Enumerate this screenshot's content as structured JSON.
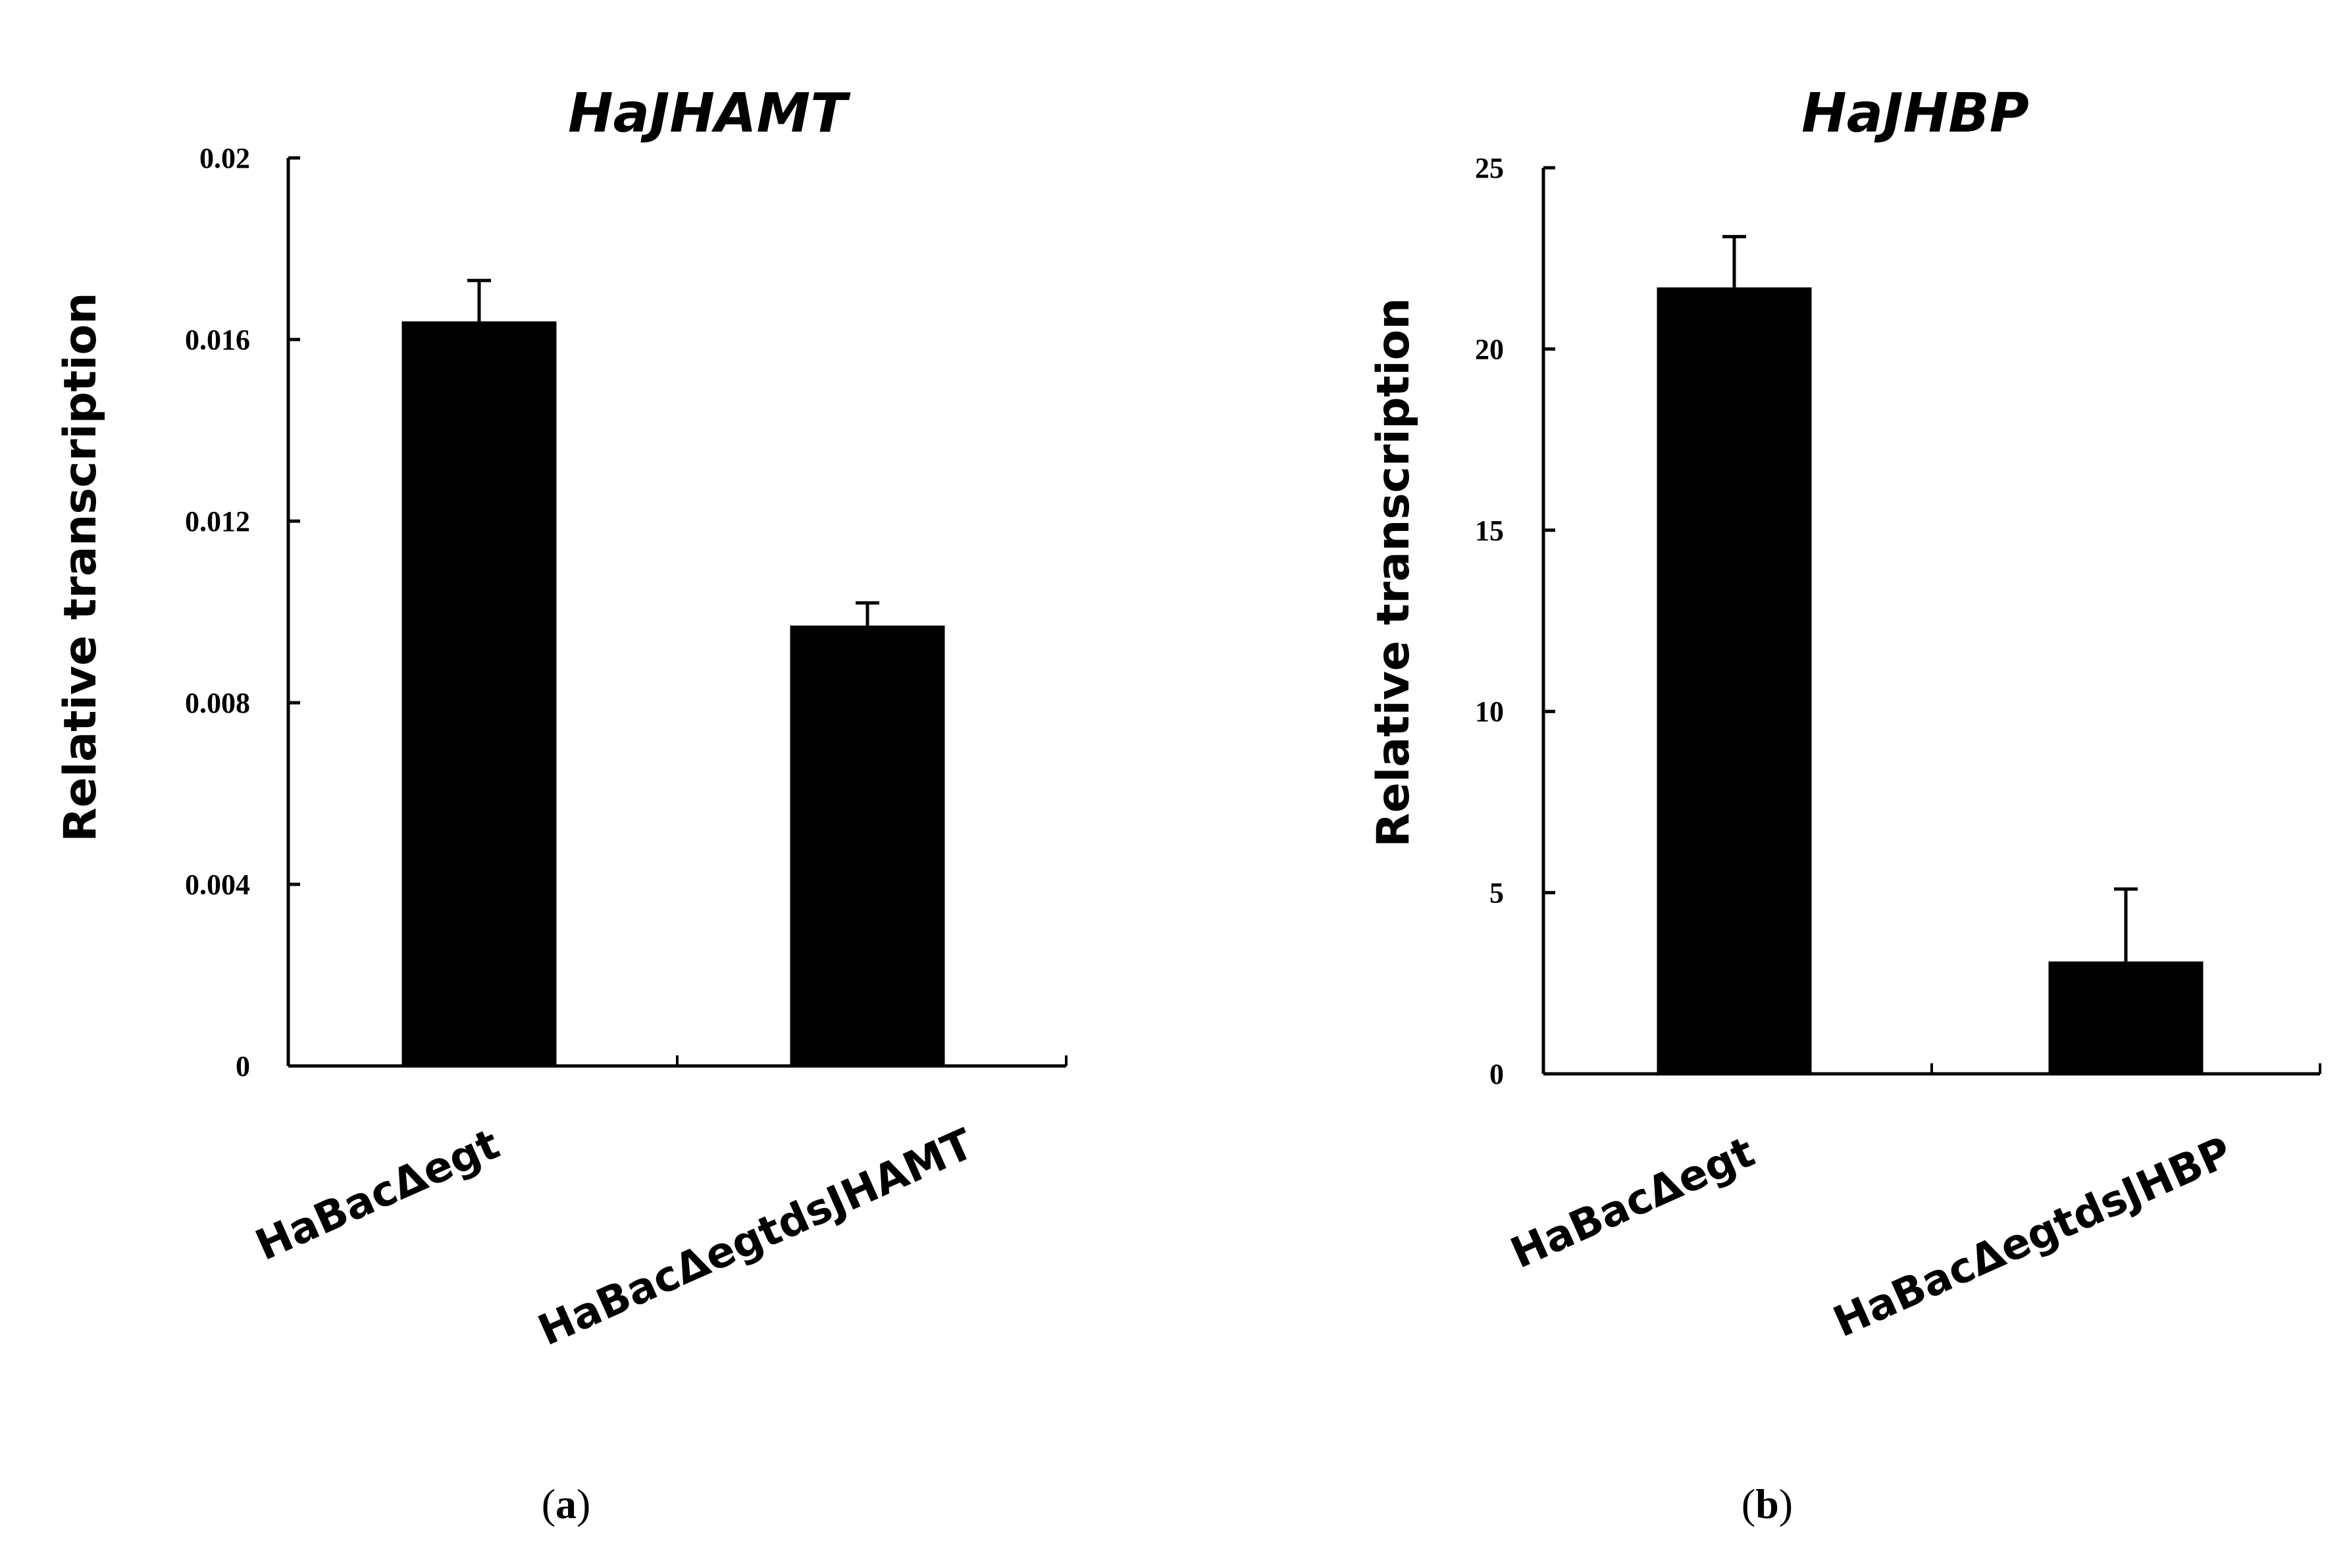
{
  "chart_data": [
    {
      "type": "bar",
      "title": "HaJHAMT",
      "ylabel": "Relative transcription",
      "xlabel": "",
      "categories": [
        "HaBacΔegt",
        "HaBacΔegtdsJHAMT"
      ],
      "values": [
        0.0164,
        0.0097
      ],
      "errors": [
        0.0009,
        0.0005
      ],
      "ylim": [
        0,
        0.02
      ],
      "yticks": [
        "0",
        "0.004",
        "0.008",
        "0.012",
        "0.016",
        "0.02"
      ],
      "ytick_values": [
        0,
        0.004,
        0.008,
        0.012,
        0.016,
        0.02
      ],
      "bar_color": "#000000",
      "grid": false,
      "panel_label": {
        "open": "(",
        "letter": "a",
        "close": ")"
      }
    },
    {
      "type": "bar",
      "title": "HaJHBP",
      "ylabel": "Relative transcription",
      "xlabel": "",
      "categories": [
        "HaBacΔegt",
        "HaBacΔegtdsJHBP"
      ],
      "values": [
        21.7,
        3.1
      ],
      "errors": [
        1.4,
        2.0
      ],
      "ylim": [
        0,
        25
      ],
      "yticks": [
        "0",
        "5",
        "10",
        "15",
        "20",
        "25"
      ],
      "ytick_values": [
        0,
        5,
        10,
        15,
        20,
        25
      ],
      "bar_color": "#000000",
      "grid": false,
      "panel_label": {
        "open": "(",
        "letter": "b",
        "close": ")"
      }
    }
  ]
}
